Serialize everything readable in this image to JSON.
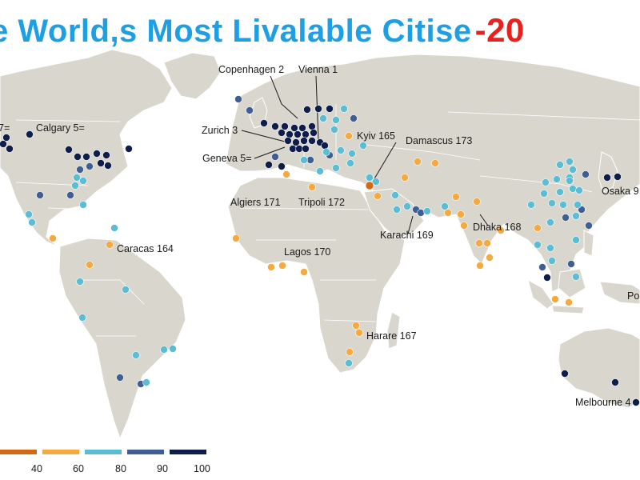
{
  "title": {
    "main": "e World,s Most Livalable Citise",
    "year": "-20"
  },
  "colors": {
    "land": "#d9d6cd",
    "ocean": "#ffffff",
    "border": "#ffffff",
    "c_lowest": "#d16a13",
    "c_low": "#f5a93e",
    "c_mid": "#5bbdd3",
    "c_high": "#3f5f92",
    "c_top": "#0f1d4b"
  },
  "legend": {
    "ticks": [
      "40",
      "60",
      "80",
      "90",
      "100"
    ],
    "bins": [
      {
        "from": 30,
        "to": 40,
        "color": "#d16a13"
      },
      {
        "from": 40,
        "to": 60,
        "color": "#f5a93e"
      },
      {
        "from": 60,
        "to": 80,
        "color": "#5bbdd3"
      },
      {
        "from": 80,
        "to": 90,
        "color": "#3f5f92"
      },
      {
        "from": 90,
        "to": 100,
        "color": "#0f1d4b"
      }
    ]
  },
  "labels": [
    {
      "id": "label-7",
      "text": "7="
    },
    {
      "id": "label-calgary",
      "text": "Calgary 5="
    },
    {
      "id": "label-copenhagen",
      "text": "Copenhagen 2"
    },
    {
      "id": "label-vienna",
      "text": "Vienna 1"
    },
    {
      "id": "label-zurich",
      "text": "Zurich 3"
    },
    {
      "id": "label-geneva",
      "text": "Geneva 5="
    },
    {
      "id": "label-kyiv",
      "text": "Kyiv 165"
    },
    {
      "id": "label-damascus",
      "text": "Damascus 173"
    },
    {
      "id": "label-algiers",
      "text": "Algiers 171"
    },
    {
      "id": "label-tripoli",
      "text": "Tripoli 172"
    },
    {
      "id": "label-osaka",
      "text": "Osaka 9"
    },
    {
      "id": "label-karachi",
      "text": "Karachi 169"
    },
    {
      "id": "label-dhaka",
      "text": "Dhaka 168"
    },
    {
      "id": "label-caracas",
      "text": "Caracas 164"
    },
    {
      "id": "label-lagos",
      "text": "Lagos 170"
    },
    {
      "id": "label-harare",
      "text": "Harare 167"
    },
    {
      "id": "label-po",
      "text": "Po"
    },
    {
      "id": "label-melbourne",
      "text": "Melbourne 4"
    }
  ]
}
